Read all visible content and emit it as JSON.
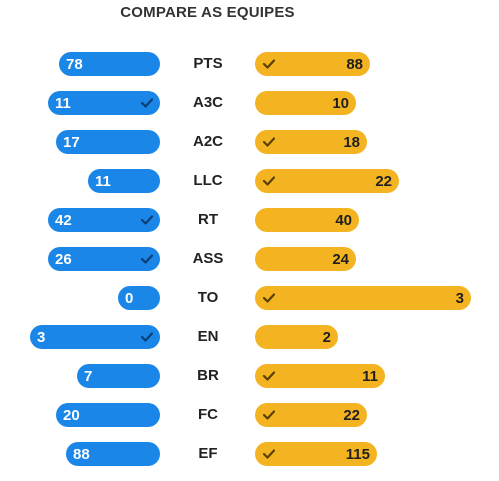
{
  "title": "COMPARE AS EQUIPES",
  "colors": {
    "home": "#1a86e8",
    "away": "#f4b421"
  },
  "stats": [
    {
      "label": "PTS",
      "home": 78,
      "away": 88,
      "home_frac": 0.28,
      "away_frac": 0.32,
      "winner": "away"
    },
    {
      "label": "A3C",
      "home": 11,
      "away": 10,
      "home_frac": 0.31,
      "away_frac": 0.28,
      "winner": "home"
    },
    {
      "label": "A2C",
      "home": 17,
      "away": 18,
      "home_frac": 0.29,
      "away_frac": 0.31,
      "winner": "away"
    },
    {
      "label": "LLC",
      "home": 11,
      "away": 22,
      "home_frac": 0.2,
      "away_frac": 0.4,
      "winner": "away"
    },
    {
      "label": "RT",
      "home": 42,
      "away": 40,
      "home_frac": 0.31,
      "away_frac": 0.29,
      "winner": "home"
    },
    {
      "label": "ASS",
      "home": 26,
      "away": 24,
      "home_frac": 0.31,
      "away_frac": 0.28,
      "winner": "home"
    },
    {
      "label": "TO",
      "home": 0,
      "away": 3,
      "home_frac": 0.0,
      "away_frac": 0.6,
      "winner": "away"
    },
    {
      "label": "EN",
      "home": 3,
      "away": 2,
      "home_frac": 0.36,
      "away_frac": 0.23,
      "winner": "home"
    },
    {
      "label": "BR",
      "home": 7,
      "away": 11,
      "home_frac": 0.23,
      "away_frac": 0.36,
      "winner": "away"
    },
    {
      "label": "FC",
      "home": 20,
      "away": 22,
      "home_frac": 0.29,
      "away_frac": 0.31,
      "winner": "away"
    },
    {
      "label": "EF",
      "home": 88,
      "away": 115,
      "home_frac": 0.26,
      "away_frac": 0.34,
      "winner": "away"
    }
  ]
}
